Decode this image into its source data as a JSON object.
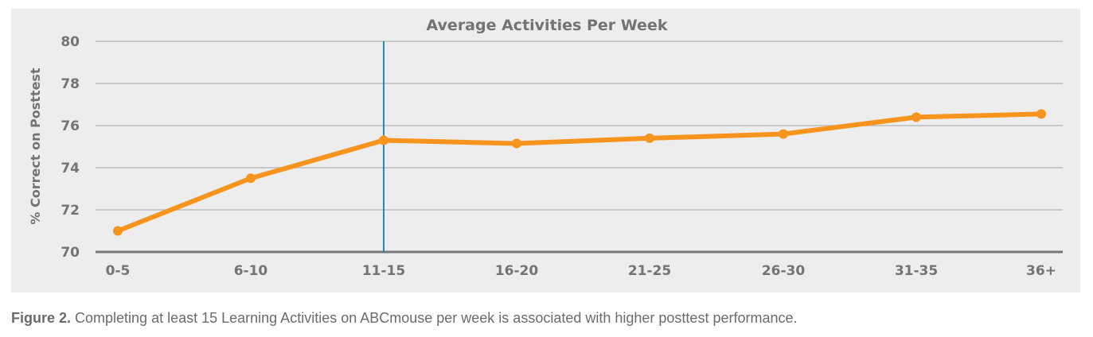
{
  "chart_data": {
    "type": "line",
    "title": "Average Activities Per Week",
    "xlabel": "",
    "ylabel": "% Correct on Posttest",
    "categories": [
      "0-5",
      "6-10",
      "11-15",
      "16-20",
      "21-25",
      "26-30",
      "31-35",
      "36+"
    ],
    "values": [
      71.0,
      73.5,
      75.3,
      75.15,
      75.4,
      75.6,
      76.4,
      76.55
    ],
    "ylim": [
      70,
      80
    ],
    "yticks": [
      70,
      72,
      74,
      76,
      78,
      80
    ],
    "grid": true,
    "reference_line_category": "11-15",
    "colors": {
      "line": "#f7941d",
      "reference_line": "#1e88d0",
      "grid": "#c8c8c8",
      "background": "#ededed"
    }
  },
  "caption": {
    "label": "Figure 2.",
    "text": " Completing at least 15 Learning Activities on ABCmouse per week is associated with higher posttest performance."
  }
}
